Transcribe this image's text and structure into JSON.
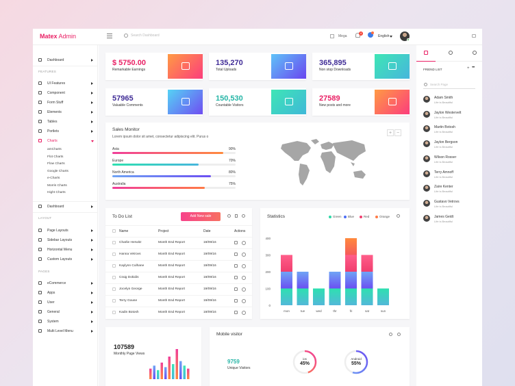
{
  "app": {
    "brand_bold": "Ma",
    "brand_accent": "tex",
    "brand_rest": " Admin"
  },
  "topbar": {
    "search_placeholder": "Search Dashboard",
    "mega_label": "Mega",
    "notification_count": "4",
    "language": "English"
  },
  "sidebar": {
    "dashboard_top": "Dashboard",
    "section_features": "FEATURES",
    "features": [
      "UI Features",
      "Component",
      "Form Stuff",
      "Elements",
      "Tables",
      "Portlets",
      "Charts"
    ],
    "charts_sub": [
      "amCharts",
      "Flot Charts",
      "Flow Charts",
      "Google Charts",
      "e-Charts",
      "Morris Charts",
      "Hight Charts"
    ],
    "dashboard_2": "Dashboard",
    "section_layout": "LAYOUT",
    "layout": [
      "Page Layouts",
      "Sidebar Layouts",
      "Horizontal Menu",
      "Custom Layouts"
    ],
    "section_pages": "PAGES",
    "pages": [
      "eCommerce",
      "Apps",
      "User",
      "General",
      "System",
      "Multi Level Menu"
    ]
  },
  "stats": [
    {
      "value": "$ 5750.00",
      "label": "Remarkable Earnings",
      "color": "#e91e63",
      "icon": "trophy-icon"
    },
    {
      "value": "135,270",
      "label": "Total Uploads",
      "color": "#3f2b96",
      "icon": "cloud-upload-icon"
    },
    {
      "value": "365,895",
      "label": "Non stop Downloads",
      "color": "#3f2b96",
      "icon": "cloud-download-icon"
    },
    {
      "value": "57965",
      "label": "Valuable Comments",
      "color": "#3f2b96",
      "icon": "chat-icon"
    },
    {
      "value": "150,530",
      "label": "Countable Visitors",
      "color": "#26b5a6",
      "icon": "users-icon"
    },
    {
      "value": "27589",
      "label": "New posts and more",
      "color": "#e91e63",
      "icon": "rocket-icon"
    }
  ],
  "sales": {
    "title": "Sales Monitor",
    "subtitle": "Lorem ipsum dolor sit amet, consectetur adipiscing elit. Purus o",
    "rows": [
      {
        "label": "Asia",
        "pct_text": "90%",
        "pct": 0.9
      },
      {
        "label": "Europe",
        "pct_text": "70%",
        "pct": 0.7
      },
      {
        "label": "North America",
        "pct_text": "80%",
        "pct": 0.8
      },
      {
        "label": "Australia",
        "pct_text": "75%",
        "pct": 0.75
      }
    ]
  },
  "todo": {
    "title": "To Do List",
    "add_button": "Add New sale",
    "headers": [
      "Name",
      "Project",
      "Date",
      "Actions"
    ],
    "rows": [
      [
        "Charlie Herwitz",
        "Month End Report",
        "19/09/16"
      ],
      [
        "Hanna Vetrovs",
        "Month End Report",
        "19/09/16"
      ],
      [
        "Kaylynn Culhane",
        "Month End Report",
        "19/09/16"
      ],
      [
        "Craig Dokidis",
        "Month End Report",
        "19/09/16"
      ],
      [
        "Jocelyn George",
        "Month End Report",
        "19/09/16"
      ],
      [
        "Terry Gouse",
        "Month End Report",
        "19/09/16"
      ],
      [
        "Kadin Botosh",
        "Month End Report",
        "19/09/16"
      ]
    ]
  },
  "statistics": {
    "title": "Statistics",
    "legend": [
      {
        "name": "Green",
        "color": "#2ed8a8"
      },
      {
        "name": "Blue",
        "color": "#4c6ef5"
      },
      {
        "name": "Red",
        "color": "#f03e6e"
      },
      {
        "name": "Orange",
        "color": "#ff7a45"
      }
    ]
  },
  "chart_data": {
    "type": "bar",
    "categories": [
      "mon",
      "tue",
      "wed",
      "thr",
      "fri",
      "sat",
      "sun"
    ],
    "ylim": [
      0,
      400
    ],
    "yticks": [
      "0",
      "100",
      "200",
      "300",
      "400"
    ],
    "stacks": [
      [
        100,
        100,
        100,
        0
      ],
      [
        100,
        100,
        0,
        0
      ],
      [
        100,
        0,
        0,
        0
      ],
      [
        100,
        100,
        0,
        0
      ],
      [
        100,
        100,
        100,
        100
      ],
      [
        100,
        100,
        100,
        0
      ],
      [
        100,
        0,
        0,
        0
      ]
    ],
    "stack_colors": [
      [
        "#2ee0b0",
        "#52b8d9"
      ],
      [
        "#6fa4f5",
        "#6b4ff2"
      ],
      [
        "#ff5e8a",
        "#f03e6e"
      ],
      [
        "#ff8a3d",
        "#f55a5a"
      ]
    ]
  },
  "monthly": {
    "value": "107589",
    "label": "Monthly Page Views",
    "bars": [
      0.35,
      0.45,
      0.3,
      0.55,
      0.4,
      0.75,
      0.5,
      1.0,
      0.6,
      0.45,
      0.35
    ]
  },
  "mobile": {
    "title": "Mobile visitor",
    "unique_value": "9759",
    "unique_label": "Unique Visitors",
    "ios_label": "ios",
    "ios_pct_text": "45%",
    "ios_pct": 0.45,
    "android_label": "Android",
    "android_pct_text": "55%",
    "android_pct": 0.55
  },
  "friends": {
    "title": "FRIEND LIST",
    "search_placeholder": "Search Page",
    "list": [
      {
        "name": "Adam Smith",
        "status": "Life is Beautiful"
      },
      {
        "name": "Jaylon Westervelt",
        "status": "Life is Beautiful"
      },
      {
        "name": "Martin Botosh",
        "status": "Life is Beautiful"
      },
      {
        "name": "Jaylon Bergson",
        "status": "Life is Beautiful"
      },
      {
        "name": "Wilson Rosser",
        "status": "Life is Beautiful"
      },
      {
        "name": "Terry Amnoff",
        "status": "Life is Beautiful"
      },
      {
        "name": "Zaire Kenter",
        "status": "Life is Beautiful"
      },
      {
        "name": "Gustavo Vetrovs",
        "status": "Life is Beautiful"
      },
      {
        "name": "James Geidt",
        "status": "Life is Beautiful"
      }
    ]
  }
}
